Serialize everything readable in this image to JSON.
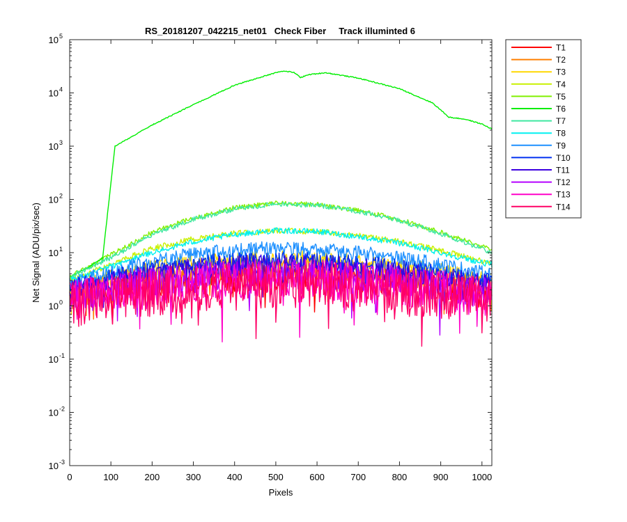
{
  "chart_data": {
    "type": "line",
    "title": "RS_20181207_042215_net01   Check Fiber     Track illuminted 6",
    "xlabel": "Pixels",
    "ylabel": "Net Signal (ADU/pix/sec)",
    "xlim": [
      0,
      1024
    ],
    "ylim": [
      0.001,
      100000
    ],
    "yscale": "log",
    "grid": false,
    "legend_position": "outside-right",
    "x_ticks": [
      "0",
      "100",
      "200",
      "300",
      "400",
      "500",
      "600",
      "700",
      "800",
      "900",
      "1000"
    ],
    "x_tick_values": [
      0,
      100,
      200,
      300,
      400,
      500,
      600,
      700,
      800,
      900,
      1000
    ],
    "y_ticks": [
      {
        "value": 0.001,
        "base": "10",
        "exp": "-3"
      },
      {
        "value": 0.01,
        "base": "10",
        "exp": "-2"
      },
      {
        "value": 0.1,
        "base": "10",
        "exp": "-1"
      },
      {
        "value": 1,
        "base": "10",
        "exp": "0"
      },
      {
        "value": 10,
        "base": "10",
        "exp": "1"
      },
      {
        "value": 100,
        "base": "10",
        "exp": "2"
      },
      {
        "value": 1000,
        "base": "10",
        "exp": "3"
      },
      {
        "value": 10000,
        "base": "10",
        "exp": "4"
      },
      {
        "value": 100000,
        "base": "10",
        "exp": "5"
      }
    ],
    "series": [
      {
        "name": "T1",
        "color": "#ff0000",
        "x": [
          0,
          100,
          200,
          300,
          400,
          500,
          600,
          700,
          800,
          900,
          1000,
          1024
        ],
        "y": [
          1.4,
          1.9,
          2.4,
          2.9,
          3.3,
          3.5,
          3.4,
          3.0,
          2.6,
          2.1,
          1.6,
          1.5
        ],
        "noise": 0.55
      },
      {
        "name": "T2",
        "color": "#ff7f00",
        "x": [
          0,
          100,
          200,
          300,
          400,
          500,
          600,
          700,
          800,
          900,
          1000,
          1024
        ],
        "y": [
          1.8,
          2.6,
          3.5,
          4.3,
          4.9,
          5.2,
          5.0,
          4.5,
          3.8,
          3.1,
          2.3,
          2.1
        ],
        "noise": 0.45
      },
      {
        "name": "T3",
        "color": "#ffd700",
        "x": [
          0,
          100,
          200,
          300,
          400,
          500,
          600,
          700,
          800,
          900,
          1000,
          1024
        ],
        "y": [
          2.2,
          3.5,
          5.0,
          6.2,
          7.2,
          7.6,
          7.4,
          6.7,
          5.6,
          4.4,
          3.2,
          2.9
        ],
        "noise": 0.35
      },
      {
        "name": "T4",
        "color": "#c8f000",
        "x": [
          0,
          100,
          200,
          300,
          400,
          500,
          600,
          700,
          800,
          900,
          1000,
          1024
        ],
        "y": [
          3.0,
          6.0,
          12,
          18,
          23,
          26,
          25,
          21,
          16,
          11,
          7,
          6
        ],
        "noise": 0.12
      },
      {
        "name": "T5",
        "color": "#80f000",
        "x": [
          0,
          100,
          200,
          300,
          400,
          500,
          600,
          700,
          800,
          900,
          1000,
          1024
        ],
        "y": [
          3.5,
          9,
          24,
          45,
          70,
          85,
          80,
          62,
          42,
          24,
          13,
          11
        ],
        "noise": 0.1
      },
      {
        "name": "T6",
        "color": "#00ee00",
        "x": [
          0,
          40,
          80,
          100,
          110,
          150,
          200,
          300,
          400,
          500,
          520,
          545,
          560,
          580,
          620,
          700,
          800,
          880,
          920,
          960,
          1000,
          1024
        ],
        "y": [
          3.5,
          5,
          8,
          200,
          1000,
          1500,
          2500,
          6000,
          14000,
          24000,
          26000,
          24000,
          19500,
          22000,
          24000,
          19000,
          12000,
          6500,
          3500,
          3200,
          2600,
          2100
        ],
        "noise": 0.02
      },
      {
        "name": "T7",
        "color": "#3ee8a0",
        "x": [
          0,
          100,
          200,
          300,
          400,
          500,
          600,
          700,
          800,
          900,
          1000,
          1024
        ],
        "y": [
          3.5,
          8,
          22,
          42,
          66,
          82,
          78,
          60,
          40,
          23,
          12,
          10
        ],
        "noise": 0.1
      },
      {
        "name": "T8",
        "color": "#00f0f0",
        "x": [
          0,
          100,
          200,
          300,
          400,
          500,
          600,
          700,
          800,
          900,
          1000,
          1024
        ],
        "y": [
          3.0,
          5.5,
          10,
          16,
          22,
          26,
          25,
          20,
          15,
          10,
          6.5,
          6
        ],
        "noise": 0.12
      },
      {
        "name": "T9",
        "color": "#1e90ff",
        "x": [
          0,
          100,
          200,
          300,
          400,
          500,
          600,
          700,
          800,
          900,
          1000,
          1024
        ],
        "y": [
          2.6,
          4.2,
          7,
          9.5,
          11.5,
          12,
          11.5,
          10,
          8,
          6,
          4.2,
          3.8
        ],
        "noise": 0.3
      },
      {
        "name": "T10",
        "color": "#0030f0",
        "x": [
          0,
          100,
          200,
          300,
          400,
          500,
          600,
          700,
          800,
          900,
          1000,
          1024
        ],
        "y": [
          2.2,
          3.5,
          5,
          6.2,
          7,
          7.3,
          7,
          6.2,
          5.2,
          4,
          3,
          2.8
        ],
        "noise": 0.35
      },
      {
        "name": "T11",
        "color": "#3c00e0",
        "x": [
          0,
          100,
          200,
          300,
          400,
          500,
          600,
          700,
          800,
          900,
          1000,
          1024
        ],
        "y": [
          1.9,
          2.9,
          4,
          5,
          5.6,
          5.8,
          5.6,
          5,
          4.2,
          3.3,
          2.5,
          2.3
        ],
        "noise": 0.45
      },
      {
        "name": "T12",
        "color": "#b400ff",
        "x": [
          0,
          100,
          200,
          300,
          400,
          500,
          600,
          700,
          800,
          900,
          1000,
          1024
        ],
        "y": [
          1.5,
          2.1,
          2.8,
          3.4,
          3.8,
          4,
          3.8,
          3.4,
          2.9,
          2.3,
          1.8,
          1.7
        ],
        "noise": 0.65
      },
      {
        "name": "T13",
        "color": "#ff00c8",
        "x": [
          0,
          100,
          200,
          300,
          400,
          500,
          600,
          700,
          800,
          900,
          1000,
          1024
        ],
        "y": [
          1.2,
          1.7,
          2.2,
          2.7,
          3,
          3.1,
          3,
          2.7,
          2.3,
          1.9,
          1.5,
          1.4
        ],
        "noise": 0.85
      },
      {
        "name": "T14",
        "color": "#ff0066",
        "x": [
          0,
          100,
          200,
          300,
          400,
          500,
          600,
          700,
          800,
          900,
          1000,
          1024
        ],
        "y": [
          1.0,
          1.4,
          1.8,
          2.2,
          2.5,
          2.6,
          2.5,
          2.2,
          1.9,
          1.6,
          1.3,
          1.2
        ],
        "noise": 1.0
      }
    ]
  }
}
